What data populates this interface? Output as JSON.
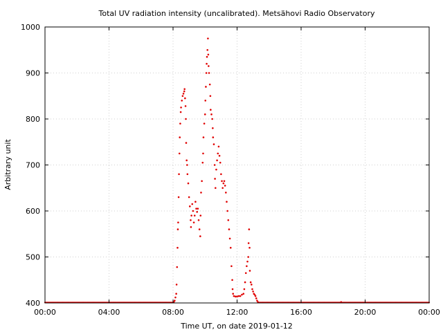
{
  "chart_data": {
    "type": "scatter",
    "title": "Total UV radiation intensity (uncalibrated). Metsähovi Radio Observatory",
    "xlabel": "Time UT, on date 2019-01-12",
    "ylabel": "Arbitrary unit",
    "xlim": [
      0,
      24
    ],
    "ylim": [
      400,
      1000
    ],
    "xticks": [
      0,
      4,
      8,
      12,
      16,
      20,
      24
    ],
    "xtick_labels": [
      "00:00",
      "04:00",
      "08:00",
      "12:00",
      "16:00",
      "20:00",
      "00:00"
    ],
    "yticks": [
      400,
      500,
      600,
      700,
      800,
      900,
      1000
    ],
    "ytick_labels": [
      "400",
      "500",
      "600",
      "700",
      "800",
      "900",
      "1000"
    ],
    "grid": true,
    "marker_color": "#e00000",
    "baseline": {
      "value": 401,
      "from_hour": 0,
      "to_hour": 24
    },
    "series": [
      {
        "points": [
          [
            8.05,
            402
          ],
          [
            8.1,
            405
          ],
          [
            8.15,
            412
          ],
          [
            8.2,
            420
          ],
          [
            8.22,
            440
          ],
          [
            8.25,
            478
          ],
          [
            8.28,
            520
          ],
          [
            8.3,
            560
          ],
          [
            8.32,
            575
          ],
          [
            8.35,
            630
          ],
          [
            8.37,
            680
          ],
          [
            8.4,
            725
          ],
          [
            8.42,
            760
          ],
          [
            8.45,
            790
          ],
          [
            8.48,
            815
          ],
          [
            8.5,
            825
          ],
          [
            8.55,
            840
          ],
          [
            8.6,
            850
          ],
          [
            8.65,
            855
          ],
          [
            8.7,
            860
          ],
          [
            8.72,
            865
          ],
          [
            8.75,
            845
          ],
          [
            8.78,
            828
          ],
          [
            8.8,
            800
          ],
          [
            8.82,
            748
          ],
          [
            8.85,
            710
          ],
          [
            8.88,
            700
          ],
          [
            8.9,
            680
          ],
          [
            8.95,
            660
          ],
          [
            9.0,
            630
          ],
          [
            9.05,
            610
          ],
          [
            9.1,
            580
          ],
          [
            9.12,
            565
          ],
          [
            9.15,
            590
          ],
          [
            9.2,
            615
          ],
          [
            9.25,
            600
          ],
          [
            9.3,
            575
          ],
          [
            9.35,
            590
          ],
          [
            9.4,
            620
          ],
          [
            9.45,
            605
          ],
          [
            9.5,
            598
          ],
          [
            9.55,
            605
          ],
          [
            9.6,
            580
          ],
          [
            9.65,
            560
          ],
          [
            9.7,
            545
          ],
          [
            9.72,
            590
          ],
          [
            9.75,
            640
          ],
          [
            9.8,
            665
          ],
          [
            9.85,
            705
          ],
          [
            9.88,
            725
          ],
          [
            9.9,
            760
          ],
          [
            9.95,
            790
          ],
          [
            10.0,
            810
          ],
          [
            10.02,
            840
          ],
          [
            10.05,
            870
          ],
          [
            10.08,
            900
          ],
          [
            10.1,
            920
          ],
          [
            10.12,
            935
          ],
          [
            10.15,
            950
          ],
          [
            10.18,
            975
          ],
          [
            10.2,
            940
          ],
          [
            10.22,
            915
          ],
          [
            10.25,
            900
          ],
          [
            10.3,
            875
          ],
          [
            10.33,
            850
          ],
          [
            10.35,
            820
          ],
          [
            10.4,
            810
          ],
          [
            10.45,
            800
          ],
          [
            10.48,
            780
          ],
          [
            10.5,
            760
          ],
          [
            10.55,
            745
          ],
          [
            10.6,
            700
          ],
          [
            10.62,
            670
          ],
          [
            10.65,
            650
          ],
          [
            10.7,
            690
          ],
          [
            10.75,
            710
          ],
          [
            10.8,
            725
          ],
          [
            10.85,
            740
          ],
          [
            10.9,
            720
          ],
          [
            10.95,
            705
          ],
          [
            11.0,
            680
          ],
          [
            11.05,
            665
          ],
          [
            11.1,
            650
          ],
          [
            11.15,
            660
          ],
          [
            11.2,
            665
          ],
          [
            11.25,
            655
          ],
          [
            11.3,
            640
          ],
          [
            11.35,
            620
          ],
          [
            11.4,
            600
          ],
          [
            11.45,
            580
          ],
          [
            11.5,
            560
          ],
          [
            11.55,
            540
          ],
          [
            11.6,
            520
          ],
          [
            11.65,
            480
          ],
          [
            11.7,
            450
          ],
          [
            11.72,
            430
          ],
          [
            11.75,
            420
          ],
          [
            11.8,
            415
          ],
          [
            11.9,
            414
          ],
          [
            12.0,
            414
          ],
          [
            12.1,
            415
          ],
          [
            12.2,
            415
          ],
          [
            12.3,
            418
          ],
          [
            12.4,
            420
          ],
          [
            12.45,
            430
          ],
          [
            12.5,
            445
          ],
          [
            12.55,
            465
          ],
          [
            12.6,
            480
          ],
          [
            12.65,
            490
          ],
          [
            12.7,
            500
          ],
          [
            12.72,
            530
          ],
          [
            12.75,
            560
          ],
          [
            12.78,
            520
          ],
          [
            12.8,
            470
          ],
          [
            12.85,
            445
          ],
          [
            12.9,
            440
          ],
          [
            12.95,
            430
          ],
          [
            13.0,
            425
          ],
          [
            13.05,
            420
          ],
          [
            13.1,
            418
          ],
          [
            13.15,
            415
          ],
          [
            13.2,
            410
          ],
          [
            13.25,
            405
          ],
          [
            13.3,
            402
          ],
          [
            18.5,
            402
          ]
        ]
      }
    ]
  }
}
